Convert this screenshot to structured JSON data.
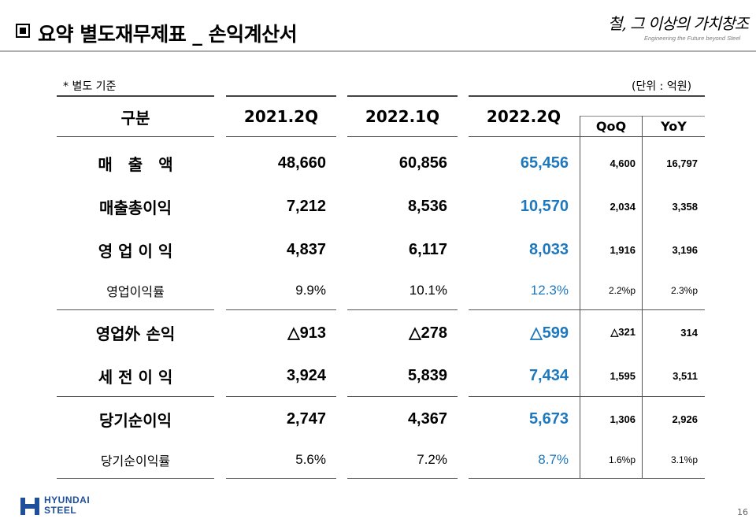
{
  "title": "요약 별도재무제표 _ 손익계산서",
  "slogan": {
    "korean": "철, 그 이상의 가치창조",
    "english": "Engineering the Future beyond Steel"
  },
  "notes": {
    "basis": "* 별도 기준",
    "unit": "(단위 : 억원)"
  },
  "table": {
    "headers": {
      "item": "구분",
      "col1": "2021.2Q",
      "col2": "2022.1Q",
      "col3": "2022.2Q",
      "qoq": "QoQ",
      "yoy": "YoY"
    },
    "rows": [
      {
        "label": "매　출　액",
        "v1": "48,660",
        "v2": "60,856",
        "v3": "65,456",
        "qoq": "4,600",
        "yoy": "16,797"
      },
      {
        "label": "매출총이익",
        "v1": "7,212",
        "v2": "8,536",
        "v3": "10,570",
        "qoq": "2,034",
        "yoy": "3,358"
      },
      {
        "label": "영 업 이 익",
        "v1": "4,837",
        "v2": "6,117",
        "v3": "8,033",
        "qoq": "1,916",
        "yoy": "3,196"
      },
      {
        "label": "영업이익률",
        "v1": "9.9%",
        "v2": "10.1%",
        "v3": "12.3%",
        "qoq": "2.2%p",
        "yoy": "2.3%p"
      },
      {
        "label": "영업外 손익",
        "v1": "△913",
        "v2": "△278",
        "v3": "△599",
        "qoq": "△321",
        "yoy": "314"
      },
      {
        "label": "세 전 이 익",
        "v1": "3,924",
        "v2": "5,839",
        "v3": "7,434",
        "qoq": "1,595",
        "yoy": "3,511"
      },
      {
        "label": "당기순이익",
        "v1": "2,747",
        "v2": "4,367",
        "v3": "5,673",
        "qoq": "1,306",
        "yoy": "2,926"
      },
      {
        "label": "당기순이익률",
        "v1": "5.6%",
        "v2": "7.2%",
        "v3": "8.7%",
        "qoq": "1.6%p",
        "yoy": "3.1%p"
      }
    ]
  },
  "footer": {
    "logo_line1": "HYUNDAI",
    "logo_line2": "STEEL",
    "page_number": "16"
  },
  "colors": {
    "highlight_blue": "#1e78be",
    "logo_blue": "#1e4f9a"
  }
}
